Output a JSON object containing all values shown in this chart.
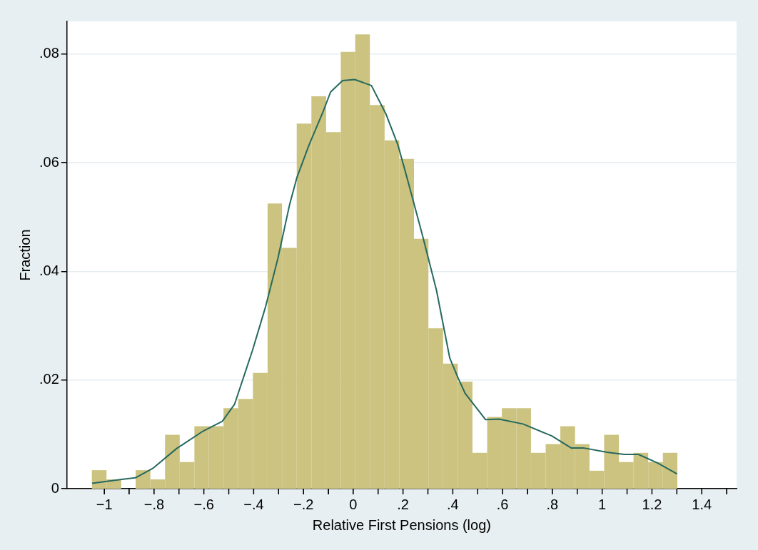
{
  "chart_data": {
    "type": "histogram",
    "xlabel": "Relative First Pensions (log)",
    "ylabel": "Fraction",
    "bins": [
      -1.05,
      -0.991,
      -0.932,
      -0.874,
      -0.815,
      -0.756,
      -0.697,
      -0.638,
      -0.58,
      -0.521,
      -0.462,
      -0.403,
      -0.344,
      -0.286,
      -0.227,
      -0.168,
      -0.109,
      -0.05,
      0.008,
      0.067,
      0.126,
      0.185,
      0.244,
      0.302,
      0.361,
      0.42,
      0.479,
      0.538,
      0.597,
      0.655,
      0.714,
      0.773,
      0.832,
      0.891,
      0.949,
      1.008,
      1.067,
      1.126,
      1.185,
      1.244,
      1.302
    ],
    "values": [
      0.0034,
      0.0017,
      0,
      0.0034,
      0.0017,
      0.0099,
      0.0049,
      0.0115,
      0.0115,
      0.0148,
      0.0165,
      0.0213,
      0.0525,
      0.0443,
      0.0672,
      0.0722,
      0.0656,
      0.0804,
      0.0836,
      0.0706,
      0.0641,
      0.0607,
      0.046,
      0.0295,
      0.023,
      0.0197,
      0.0066,
      0.0132,
      0.0148,
      0.0148,
      0.0066,
      0.0082,
      0.0115,
      0.0082,
      0.0033,
      0.0099,
      0.0049,
      0.0066,
      0.0049,
      0.0066
    ],
    "color": "#cbc37f",
    "series": [
      {
        "type": "line",
        "color": "#26695e",
        "x": [
          -1.049,
          -0.93,
          -0.875,
          -0.803,
          -0.709,
          -0.603,
          -0.526,
          -0.477,
          -0.405,
          -0.352,
          -0.303,
          -0.255,
          -0.226,
          -0.178,
          -0.12,
          -0.091,
          -0.043,
          0.006,
          0.073,
          0.131,
          0.18,
          0.218,
          0.276,
          0.334,
          0.388,
          0.421,
          0.45,
          0.532,
          0.586,
          0.682,
          0.798,
          0.875,
          0.924,
          1.02,
          1.088,
          1.146,
          1.223,
          1.301
        ],
        "values": [
          0.001,
          0.0017,
          0.002,
          0.0038,
          0.0074,
          0.0106,
          0.0124,
          0.0155,
          0.0254,
          0.0335,
          0.0423,
          0.0524,
          0.0573,
          0.0632,
          0.0695,
          0.073,
          0.0751,
          0.0753,
          0.0742,
          0.069,
          0.0632,
          0.0569,
          0.047,
          0.0366,
          0.024,
          0.0204,
          0.0175,
          0.0127,
          0.0128,
          0.0119,
          0.0097,
          0.0075,
          0.0075,
          0.0067,
          0.0063,
          0.0063,
          0.0047,
          0.0027
        ]
      }
    ],
    "xlim": [
      -1.15,
      1.54
    ],
    "xticks": [
      {
        "value": -1,
        "label": "−1"
      },
      {
        "value": -0.9,
        "label": null
      },
      {
        "value": -0.8,
        "label": "−.8"
      },
      {
        "value": -0.7,
        "label": null
      },
      {
        "value": -0.6,
        "label": "−.6"
      },
      {
        "value": -0.5,
        "label": null
      },
      {
        "value": -0.4,
        "label": "−.4"
      },
      {
        "value": -0.3,
        "label": null
      },
      {
        "value": -0.2,
        "label": "−.2"
      },
      {
        "value": -0.1,
        "label": null
      },
      {
        "value": 0,
        "label": "0"
      },
      {
        "value": 0.1,
        "label": null
      },
      {
        "value": 0.2,
        "label": ".2"
      },
      {
        "value": 0.3,
        "label": null
      },
      {
        "value": 0.4,
        "label": ".4"
      },
      {
        "value": 0.5,
        "label": null
      },
      {
        "value": 0.6,
        "label": ".6"
      },
      {
        "value": 0.7,
        "label": null
      },
      {
        "value": 0.8,
        "label": ".8"
      },
      {
        "value": 0.9,
        "label": null
      },
      {
        "value": 1,
        "label": "1"
      },
      {
        "value": 1.1,
        "label": null
      },
      {
        "value": 1.2,
        "label": "1.2"
      },
      {
        "value": 1.3,
        "label": null
      },
      {
        "value": 1.4,
        "label": "1.4"
      },
      {
        "value": 1.5,
        "label": null
      }
    ],
    "ylim": [
      0,
      0.086
    ],
    "yticks": [
      0,
      {
        "value": 0.02,
        "label": ".02"
      },
      {
        "value": 0.04,
        "label": ".04"
      },
      {
        "value": 0.06,
        "label": ".06"
      },
      {
        "value": 0.08,
        "label": ".08"
      }
    ],
    "grid": "y",
    "marker": "none"
  }
}
